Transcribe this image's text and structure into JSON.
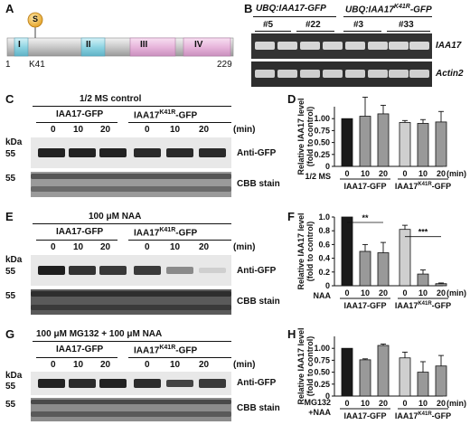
{
  "panels": {
    "A": "A",
    "B": "B",
    "C": "C",
    "D": "D",
    "E": "E",
    "F": "F",
    "G": "G",
    "H": "H"
  },
  "panelA": {
    "domain_labels": [
      "I",
      "II",
      "III",
      "IV"
    ],
    "s_badge": "S",
    "start": "1",
    "end": "229",
    "site": "K41"
  },
  "panelB": {
    "group1": "UBQ:IAA17-GFP",
    "group2_prefix": "UBQ:IAA17",
    "group2_sup": "K41R",
    "group2_suffix": "-GFP",
    "lines": [
      "#5",
      "#22",
      "#3",
      "#33"
    ],
    "gel_labels": [
      "IAA17",
      "Actin2"
    ]
  },
  "blots": {
    "kda": "kDa",
    "marker": "55",
    "min": "(min)",
    "times": [
      "0",
      "10",
      "20",
      "0",
      "10",
      "20"
    ],
    "wt": "IAA17-GFP",
    "mut_prefix": "IAA17",
    "mut_sup": "K41R",
    "mut_suffix": "-GFP",
    "anti_gfp": "Anti-GFP",
    "cbb": "CBB stain",
    "C_title": "1/2 MS control",
    "E_title": "100 μM NAA",
    "G_title": "100 μM MG132 + 100 μM NAA"
  },
  "bar_common": {
    "ylabel_line1": "Relative IAA17 level",
    "ylabel_line2": "(fold to control)",
    "min": "(min)",
    "y_ticks": [
      "0",
      "0.25",
      "0.50",
      "0.75",
      "1.00"
    ],
    "times": [
      "0",
      "10",
      "20",
      "0",
      "10",
      "20"
    ],
    "wt": "IAA17-GFP",
    "mut_prefix": "IAA17",
    "mut_sup": "K41R",
    "mut_suffix": "-GFP"
  },
  "chart_data": [
    {
      "type": "bar",
      "panel": "D",
      "condition": "1/2 MS",
      "categories": [
        "0",
        "10",
        "20",
        "0",
        "10",
        "20"
      ],
      "groups": [
        "IAA17-GFP",
        "IAA17K41R-GFP"
      ],
      "values": [
        1.0,
        1.05,
        1.1,
        0.92,
        0.9,
        0.93
      ],
      "errors": [
        0.0,
        0.4,
        0.18,
        0.04,
        0.08,
        0.22
      ],
      "colors": [
        "#1a1a1a",
        "#999999",
        "#999999",
        "#cfcfcf",
        "#999999",
        "#999999"
      ],
      "ylabel": "Relative IAA17 level (fold to control)",
      "ylim": [
        0,
        1.25
      ]
    },
    {
      "type": "bar",
      "panel": "F",
      "condition": "NAA",
      "categories": [
        "0",
        "10",
        "20",
        "0",
        "10",
        "20"
      ],
      "groups": [
        "IAA17-GFP",
        "IAA17K41R-GFP"
      ],
      "values": [
        1.0,
        0.5,
        0.48,
        0.82,
        0.17,
        0.03
      ],
      "errors": [
        0.0,
        0.1,
        0.15,
        0.06,
        0.06,
        0.01
      ],
      "colors": [
        "#1a1a1a",
        "#999999",
        "#999999",
        "#cfcfcf",
        "#999999",
        "#999999"
      ],
      "ylabel": "Relative IAA17 level (fold to control)",
      "ylim": [
        0,
        1.0
      ],
      "y_ticks": [
        "0",
        "0.2",
        "0.4",
        "0.6",
        "0.8",
        "1.0"
      ],
      "significance": [
        "**",
        "***"
      ]
    },
    {
      "type": "bar",
      "panel": "H",
      "condition_line1": "MG132",
      "condition_line2": "+NAA",
      "categories": [
        "0",
        "10",
        "20",
        "0",
        "10",
        "20"
      ],
      "groups": [
        "IAA17-GFP",
        "IAA17K41R-GFP"
      ],
      "values": [
        1.0,
        0.76,
        1.06,
        0.8,
        0.5,
        0.63
      ],
      "errors": [
        0.0,
        0.02,
        0.03,
        0.12,
        0.22,
        0.22
      ],
      "colors": [
        "#1a1a1a",
        "#999999",
        "#999999",
        "#cfcfcf",
        "#999999",
        "#999999"
      ],
      "ylabel": "Relative IAA17 level (fold to control)",
      "ylim": [
        0,
        1.25
      ]
    }
  ]
}
